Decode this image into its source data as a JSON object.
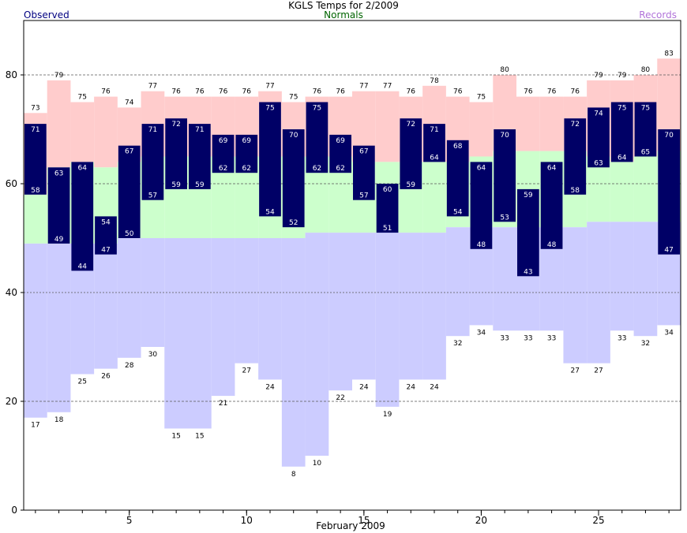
{
  "chart_data": {
    "type": "bar",
    "title": "KGLS Temps for 2/2009",
    "xlabel": "February 2009",
    "ylabel": "",
    "ylim": [
      0,
      90
    ],
    "xlim": [
      0.5,
      28.5
    ],
    "y_ticks": [
      0,
      20,
      40,
      60,
      80
    ],
    "x_ticks": [
      5,
      10,
      15,
      20,
      25
    ],
    "grid": "horizontal dashed at 20, 60, 80; dotted at 40",
    "legend": {
      "observed": "Observed",
      "normals": "Normals",
      "records": "Records"
    },
    "colors": {
      "observed": "#000066",
      "normal_band": "#ccffcc",
      "record_high_band": "#ffcccc",
      "record_low_band": "#ccccff",
      "legend_observed": "#000080",
      "legend_normals": "#006400",
      "legend_records": "#b173d9"
    },
    "days": [
      1,
      2,
      3,
      4,
      5,
      6,
      7,
      8,
      9,
      10,
      11,
      12,
      13,
      14,
      15,
      16,
      17,
      18,
      19,
      20,
      21,
      22,
      23,
      24,
      25,
      26,
      27,
      28
    ],
    "series": [
      {
        "name": "Observed High",
        "values": [
          71,
          63,
          64,
          54,
          67,
          71,
          72,
          71,
          69,
          69,
          75,
          70,
          75,
          69,
          67,
          60,
          72,
          71,
          68,
          64,
          70,
          59,
          64,
          72,
          74,
          75,
          75,
          70
        ]
      },
      {
        "name": "Observed Low",
        "values": [
          58,
          49,
          44,
          47,
          50,
          57,
          59,
          59,
          62,
          62,
          54,
          52,
          62,
          62,
          57,
          51,
          59,
          64,
          54,
          48,
          53,
          43,
          48,
          58,
          63,
          64,
          65,
          47
        ]
      },
      {
        "name": "Record High",
        "values": [
          73,
          79,
          75,
          76,
          74,
          77,
          76,
          76,
          76,
          76,
          77,
          75,
          76,
          76,
          77,
          77,
          76,
          78,
          76,
          75,
          80,
          76,
          76,
          76,
          79,
          79,
          80,
          83
        ]
      },
      {
        "name": "Record Low",
        "values": [
          17,
          18,
          25,
          26,
          28,
          30,
          15,
          15,
          21,
          27,
          24,
          8,
          10,
          22,
          24,
          19,
          24,
          24,
          32,
          34,
          33,
          33,
          33,
          27,
          27,
          33,
          32,
          34
        ]
      },
      {
        "name": "Normal High",
        "values": [
          58,
          63,
          64,
          63,
          64,
          65,
          65,
          65,
          65,
          65,
          65,
          65,
          65,
          65,
          64,
          64,
          64,
          64,
          64,
          65,
          66,
          66,
          66,
          66,
          65,
          64,
          65,
          66
        ]
      },
      {
        "name": "Normal Low",
        "values": [
          49,
          49,
          49,
          49,
          50,
          50,
          50,
          50,
          50,
          50,
          50,
          50,
          51,
          51,
          51,
          51,
          51,
          51,
          52,
          52,
          52,
          52,
          52,
          52,
          53,
          53,
          53,
          53
        ]
      }
    ]
  }
}
